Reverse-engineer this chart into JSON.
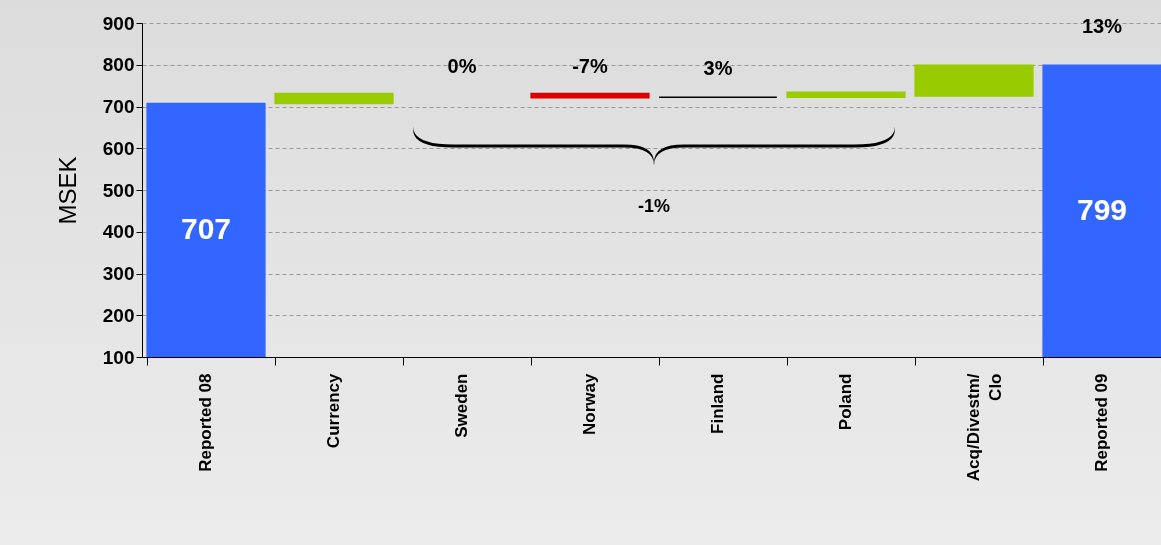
{
  "chart_data": {
    "type": "bar",
    "ylabel": "MSEK",
    "categories": [
      "Reported 08",
      "Currency",
      "Sweden",
      "Norway",
      "Finland",
      "Poland",
      "Acq/Divestm/\nClo",
      "Reported 09"
    ],
    "base": [
      100,
      707,
      null,
      731,
      722,
      722,
      725,
      100
    ],
    "values": [
      607,
      24,
      null,
      -10,
      0,
      12,
      74,
      699
    ],
    "colors": [
      "#3366ff",
      "#99cc00",
      null,
      "#dd0000",
      "#000000",
      "#99cc00",
      "#99cc00",
      "#3366ff"
    ],
    "value_labels": [
      "707",
      null,
      null,
      null,
      null,
      null,
      null,
      "799"
    ],
    "ylim": [
      100,
      900
    ],
    "yticks": [
      100,
      200,
      300,
      400,
      500,
      600,
      700,
      800,
      900
    ],
    "grid": "y",
    "annotations": [
      "0%",
      "-7%",
      "3%",
      "13%",
      "-1%"
    ]
  }
}
